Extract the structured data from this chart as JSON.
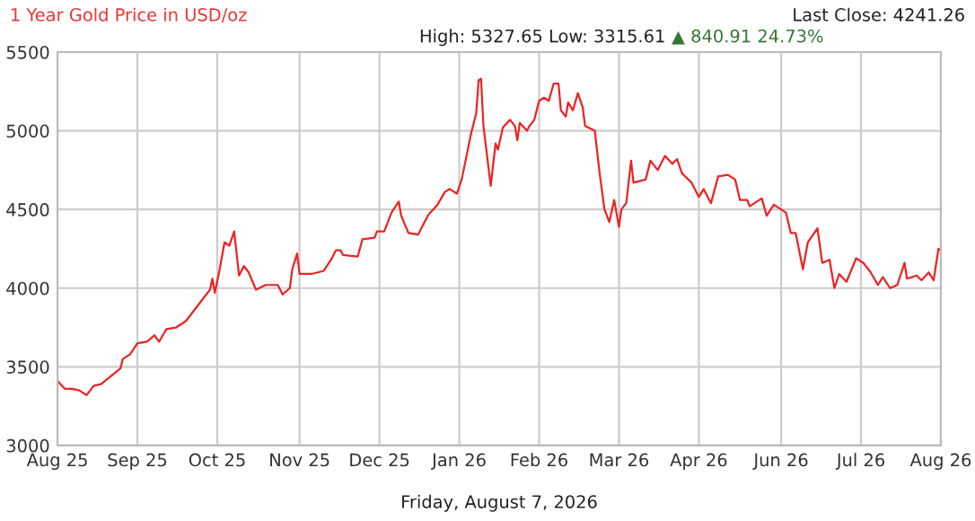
{
  "chart_data": {
    "type": "line",
    "title": "1 Year Gold Price in USD/oz",
    "subtitle": "High: 5327.65 Low: 3315.61",
    "annotations": [
      "Last Close: 4241.26",
      "▲ 840.91 24.73%"
    ],
    "xlabel": "Friday, August 7, 2026",
    "xlim": [
      "2025-08-07",
      "2026-08-07"
    ],
    "xticks": [
      {
        "value": "2025-08-07",
        "label": "Aug 25"
      },
      {
        "value": "2025-09-09",
        "label": "Sep 25"
      },
      {
        "value": "2025-10-12",
        "label": "Oct 25"
      },
      {
        "value": "2025-11-15",
        "label": "Nov 25"
      },
      {
        "value": "2025-12-18",
        "label": "Dec 25"
      },
      {
        "value": "2026-01-20",
        "label": "Jan 26"
      },
      {
        "value": "2026-02-22",
        "label": "Feb 26"
      },
      {
        "value": "2026-03-27",
        "label": "Mar 26"
      },
      {
        "value": "2026-04-29",
        "label": "Apr 26"
      },
      {
        "value": "2026-06-02",
        "label": "Jun 26"
      },
      {
        "value": "2026-07-05",
        "label": "Jul 26"
      },
      {
        "value": "2026-08-07",
        "label": "Aug 26"
      }
    ],
    "ylim": [
      3000,
      5500
    ],
    "yticks": [
      3000,
      3500,
      4000,
      4500,
      5000,
      5500
    ],
    "grid": true,
    "legend": false,
    "marker": "none",
    "line_style": "solid",
    "series": [
      {
        "color": "#ee2222",
        "x": [
          "2025-08-07",
          "2025-08-10",
          "2025-08-13",
          "2025-08-16",
          "2025-08-19",
          "2025-08-22",
          "2025-08-25",
          "2025-08-29",
          "2025-09-02",
          "2025-09-03",
          "2025-09-06",
          "2025-09-09",
          "2025-09-13",
          "2025-09-16",
          "2025-09-18",
          "2025-09-21",
          "2025-09-25",
          "2025-09-29",
          "2025-10-04",
          "2025-10-09",
          "2025-10-10",
          "2025-10-11",
          "2025-10-13",
          "2025-10-15",
          "2025-10-17",
          "2025-10-19",
          "2025-10-21",
          "2025-10-23",
          "2025-10-25",
          "2025-10-28",
          "2025-11-01",
          "2025-11-06",
          "2025-11-08",
          "2025-11-11",
          "2025-11-12",
          "2025-11-14",
          "2025-11-15",
          "2025-11-20",
          "2025-11-25",
          "2025-11-28",
          "2025-11-30",
          "2025-12-02",
          "2025-12-03",
          "2025-12-09",
          "2025-12-11",
          "2025-12-16",
          "2025-12-17",
          "2025-12-20",
          "2025-12-23",
          "2025-12-26",
          "2025-12-27",
          "2025-12-30",
          "2026-01-03",
          "2026-01-07",
          "2026-01-08",
          "2026-01-11",
          "2026-01-14",
          "2026-01-16",
          "2026-01-19",
          "2026-01-21",
          "2026-01-23",
          "2026-01-25",
          "2026-01-27",
          "2026-01-28",
          "2026-01-29",
          "2026-01-30",
          "2026-02-02",
          "2026-02-04",
          "2026-02-05",
          "2026-02-07",
          "2026-02-10",
          "2026-02-12",
          "2026-02-13",
          "2026-02-14",
          "2026-02-17",
          "2026-02-18",
          "2026-02-20",
          "2026-02-22",
          "2026-02-24",
          "2026-02-26",
          "2026-02-28",
          "2026-03-02",
          "2026-03-03",
          "2026-03-05",
          "2026-03-06",
          "2026-03-08",
          "2026-03-10",
          "2026-03-12",
          "2026-03-13",
          "2026-03-17",
          "2026-03-19",
          "2026-03-21",
          "2026-03-23",
          "2026-03-25",
          "2026-03-27",
          "2026-03-28",
          "2026-03-30",
          "2026-04-01",
          "2026-04-02",
          "2026-04-07",
          "2026-04-09",
          "2026-04-12",
          "2026-04-15",
          "2026-04-18",
          "2026-04-20",
          "2026-04-22",
          "2026-04-26",
          "2026-04-29",
          "2026-05-01",
          "2026-05-04",
          "2026-05-07",
          "2026-05-11",
          "2026-05-14",
          "2026-05-16",
          "2026-05-19",
          "2026-05-20",
          "2026-05-25",
          "2026-05-27",
          "2026-05-30",
          "2026-06-04",
          "2026-06-06",
          "2026-06-08",
          "2026-06-11",
          "2026-06-13",
          "2026-06-17",
          "2026-06-19",
          "2026-06-22",
          "2026-06-24",
          "2026-06-26",
          "2026-06-29",
          "2026-07-03",
          "2026-07-06",
          "2026-07-09",
          "2026-07-12",
          "2026-07-14",
          "2026-07-17",
          "2026-07-20",
          "2026-07-23",
          "2026-07-24",
          "2026-07-28",
          "2026-07-30",
          "2026-08-02",
          "2026-08-04",
          "2026-08-06",
          "2026-08-07"
        ],
        "values": [
          3410,
          3360,
          3360,
          3350,
          3320,
          3380,
          3390,
          3440,
          3490,
          3550,
          3580,
          3650,
          3660,
          3700,
          3660,
          3740,
          3750,
          3790,
          3890,
          3990,
          4060,
          3970,
          4120,
          4290,
          4270,
          4360,
          4080,
          4140,
          4100,
          3990,
          4020,
          4020,
          3960,
          4000,
          4120,
          4220,
          4090,
          4090,
          4110,
          4180,
          4240,
          4240,
          4210,
          4200,
          4310,
          4320,
          4360,
          4360,
          4480,
          4550,
          4460,
          4350,
          4340,
          4460,
          4480,
          4530,
          4610,
          4630,
          4600,
          4690,
          4840,
          4990,
          5110,
          5320,
          5330,
          5030,
          4650,
          4920,
          4880,
          5020,
          5070,
          5030,
          4940,
          5050,
          5000,
          5030,
          5070,
          5190,
          5210,
          5190,
          5300,
          5300,
          5130,
          5090,
          5180,
          5130,
          5240,
          5150,
          5030,
          5000,
          4730,
          4500,
          4420,
          4560,
          4390,
          4500,
          4540,
          4810,
          4670,
          4690,
          4810,
          4750,
          4840,
          4790,
          4820,
          4730,
          4670,
          4580,
          4630,
          4540,
          4710,
          4720,
          4690,
          4560,
          4560,
          4520,
          4570,
          4460,
          4530,
          4480,
          4350,
          4350,
          4120,
          4290,
          4380,
          4160,
          4180,
          4000,
          4090,
          4040,
          4190,
          4160,
          4100,
          4020,
          4070,
          4000,
          4020,
          4160,
          4060,
          4080,
          4050,
          4100,
          4050,
          4250,
          4240
        ]
      }
    ]
  }
}
